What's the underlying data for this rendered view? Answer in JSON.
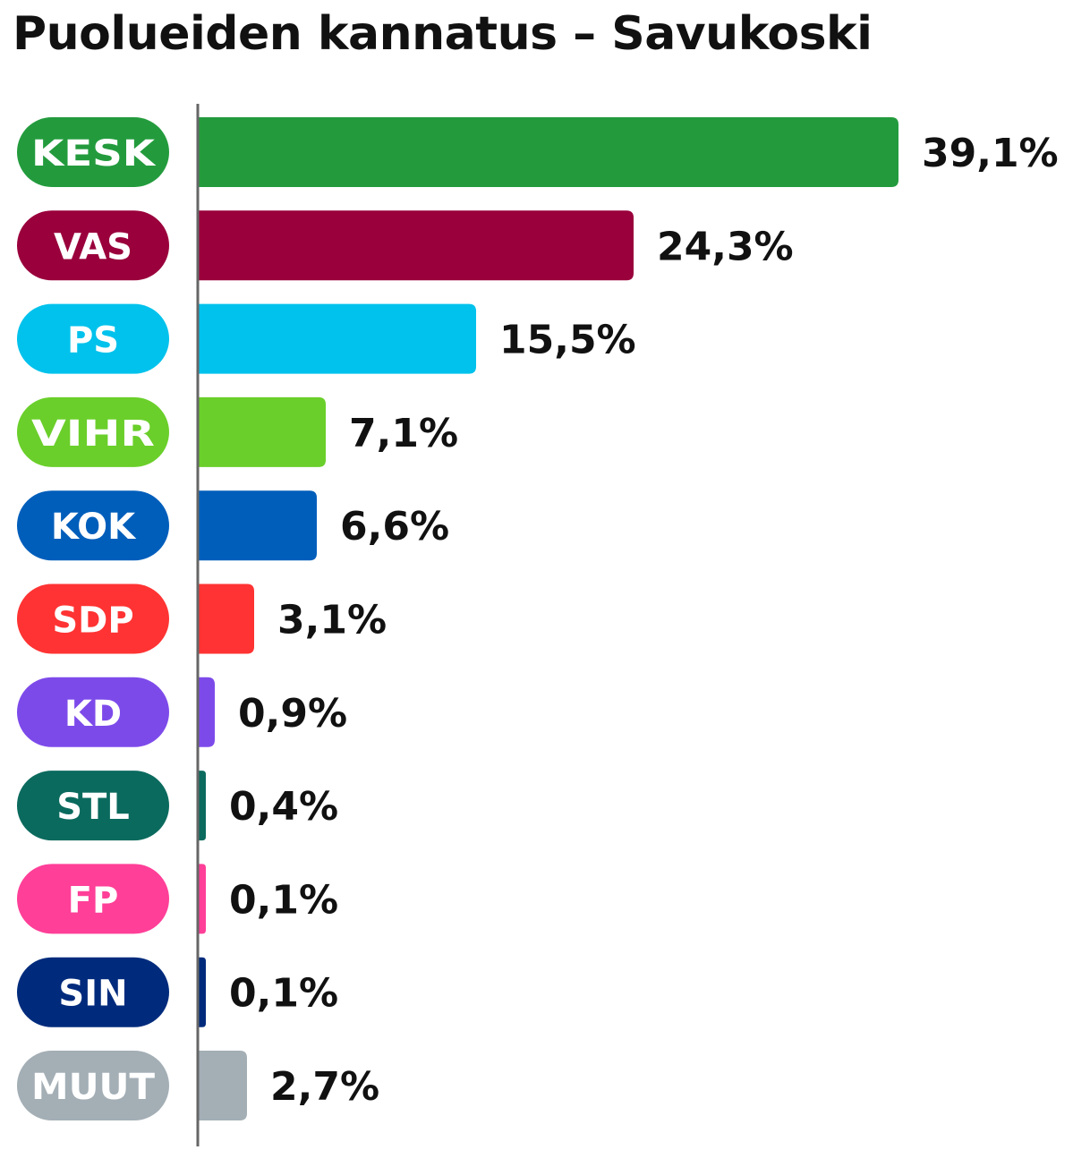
{
  "title": "Puolueiden kannatus – Savukoski",
  "chart_data": {
    "type": "bar",
    "orientation": "horizontal",
    "title": "Puolueiden kannatus – Savukoski",
    "xlabel": "",
    "ylabel": "",
    "value_suffix": "%",
    "grid": false,
    "legend": "none",
    "categories": [
      "KESK",
      "VAS",
      "PS",
      "VIHR",
      "KOK",
      "SDP",
      "KD",
      "STL",
      "FP",
      "SIN",
      "MUUT"
    ],
    "values": [
      39.1,
      24.3,
      15.5,
      7.1,
      6.6,
      3.1,
      0.9,
      0.4,
      0.1,
      0.1,
      2.7
    ],
    "value_labels": [
      "39,1%",
      "24,3%",
      "15,5%",
      "7,1%",
      "6,6%",
      "3,1%",
      "0,9%",
      "0,4%",
      "0,1%",
      "0,1%",
      "2,7%"
    ],
    "colors": [
      "#239b3d",
      "#9a003c",
      "#00c2ec",
      "#6acf2a",
      "#005ebb",
      "#ff3333",
      "#7d4aea",
      "#0b6a5e",
      "#ff3f98",
      "#002b7c",
      "#a3aeb5"
    ],
    "xlim": [
      0,
      39.1
    ]
  }
}
